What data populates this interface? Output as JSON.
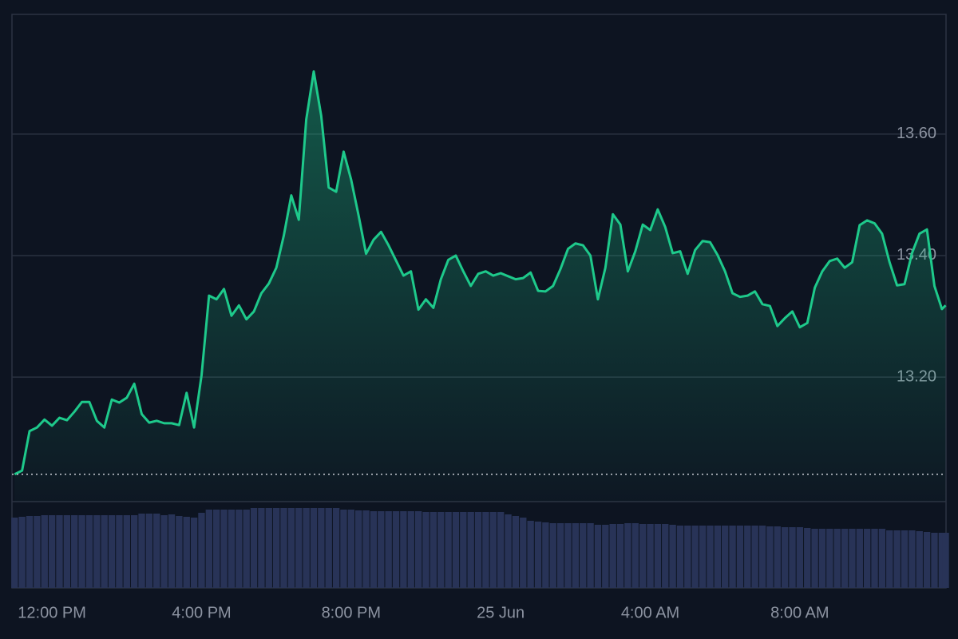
{
  "chart_data": {
    "type": "area",
    "x": [
      -1,
      -0.8,
      -0.6,
      -0.4,
      -0.2,
      0,
      0.2,
      0.4,
      0.6,
      0.8,
      1,
      1.2,
      1.4,
      1.6,
      1.8,
      2,
      2.2,
      2.4,
      2.6,
      2.8,
      3,
      3.2,
      3.4,
      3.6,
      3.8,
      4,
      4.2,
      4.4,
      4.6,
      4.8,
      5,
      5.2,
      5.4,
      5.6,
      5.8,
      6,
      6.2,
      6.4,
      6.6,
      6.8,
      7,
      7.2,
      7.4,
      7.6,
      7.8,
      8,
      8.2,
      8.4,
      8.6,
      8.8,
      9,
      9.2,
      9.4,
      9.6,
      9.8,
      10,
      10.2,
      10.4,
      10.6,
      10.8,
      11,
      11.2,
      11.4,
      11.6,
      11.8,
      12,
      12.2,
      12.4,
      12.6,
      12.8,
      13,
      13.2,
      13.4,
      13.6,
      13.8,
      14,
      14.2,
      14.4,
      14.6,
      14.8,
      15,
      15.2,
      15.4,
      15.6,
      15.8,
      16,
      16.2,
      16.4,
      16.6,
      16.8,
      17,
      17.2,
      17.4,
      17.6,
      17.8,
      18,
      18.2,
      18.4,
      18.6,
      18.8,
      19,
      19.2,
      19.4,
      19.6,
      19.8,
      20,
      20.2,
      20.4,
      20.6,
      20.8,
      21,
      21.2,
      21.4,
      21.6,
      21.8,
      22,
      22.2,
      22.4,
      22.6,
      22.8,
      23,
      23.2,
      23.4,
      23.6,
      23.8,
      23.9
    ],
    "series": [
      {
        "color": "#1ec98b",
        "values": [
          13.04,
          13.046,
          13.111,
          13.117,
          13.13,
          13.12,
          13.133,
          13.129,
          13.143,
          13.159,
          13.159,
          13.128,
          13.117,
          13.163,
          13.158,
          13.166,
          13.189,
          13.139,
          13.125,
          13.128,
          13.124,
          13.124,
          13.121,
          13.174,
          13.117,
          13.203,
          13.334,
          13.328,
          13.345,
          13.301,
          13.318,
          13.295,
          13.308,
          13.338,
          13.354,
          13.38,
          13.433,
          13.499,
          13.459,
          13.624,
          13.703,
          13.63,
          13.512,
          13.505,
          13.571,
          13.525,
          13.466,
          13.403,
          13.426,
          13.439,
          13.417,
          13.392,
          13.367,
          13.374,
          13.311,
          13.328,
          13.314,
          13.361,
          13.393,
          13.4,
          13.374,
          13.35,
          13.37,
          13.374,
          13.367,
          13.371,
          13.366,
          13.361,
          13.363,
          13.372,
          13.342,
          13.341,
          13.35,
          13.378,
          13.411,
          13.42,
          13.417,
          13.4,
          13.328,
          13.38,
          13.468,
          13.451,
          13.374,
          13.407,
          13.451,
          13.442,
          13.476,
          13.447,
          13.404,
          13.407,
          13.37,
          13.409,
          13.424,
          13.422,
          13.401,
          13.374,
          13.338,
          13.332,
          13.334,
          13.341,
          13.32,
          13.317,
          13.284,
          13.297,
          13.308,
          13.282,
          13.289,
          13.347,
          13.374,
          13.391,
          13.395,
          13.38,
          13.389,
          13.45,
          13.458,
          13.453,
          13.436,
          13.389,
          13.351,
          13.353,
          13.404,
          13.436,
          13.443,
          13.35,
          13.312,
          13.318
        ]
      }
    ],
    "volume": {
      "color": "#283357",
      "ylim": [
        0,
        108
      ],
      "values": [
        88,
        89,
        90,
        90,
        91,
        91,
        91,
        91,
        91,
        91,
        91,
        91,
        91,
        91,
        91,
        91,
        91,
        93,
        93,
        93,
        91,
        92,
        90,
        89,
        88,
        94,
        98,
        98,
        98,
        98,
        98,
        98,
        100,
        100,
        100,
        100,
        100,
        100,
        100,
        100,
        100,
        100,
        100,
        100,
        98,
        98,
        97,
        97,
        96,
        96,
        96,
        96,
        96,
        96,
        96,
        95,
        95,
        95,
        95,
        95,
        95,
        95,
        95,
        95,
        95,
        95,
        92,
        90,
        88,
        84,
        83,
        82,
        81,
        81,
        81,
        81,
        81,
        81,
        79,
        79,
        80,
        80,
        81,
        81,
        80,
        80,
        80,
        80,
        79,
        78,
        78,
        78,
        78,
        78,
        78,
        78,
        78,
        78,
        78,
        78,
        78,
        77,
        77,
        76,
        76,
        76,
        75,
        74,
        74,
        74,
        74,
        74,
        74,
        74,
        74,
        74,
        74,
        72,
        72,
        72,
        72,
        71,
        70,
        69,
        69,
        69
      ]
    },
    "baseline": 13.04,
    "xlim": [
      -1.07,
      23.91
    ],
    "xticks": [
      {
        "value": 0,
        "label": "12:00 PM"
      },
      {
        "value": 4,
        "label": "4:00 PM"
      },
      {
        "value": 8,
        "label": "8:00 PM"
      },
      {
        "value": 12,
        "label": "25 Jun"
      },
      {
        "value": 16,
        "label": "4:00 AM"
      },
      {
        "value": 20,
        "label": "8:00 AM"
      }
    ],
    "ylim": [
      12.995,
      13.797
    ],
    "yticks": [
      {
        "value": 13.2,
        "label": "13.20"
      },
      {
        "value": 13.4,
        "label": "13.40"
      },
      {
        "value": 13.6,
        "label": "13.60"
      }
    ],
    "grid": true
  }
}
